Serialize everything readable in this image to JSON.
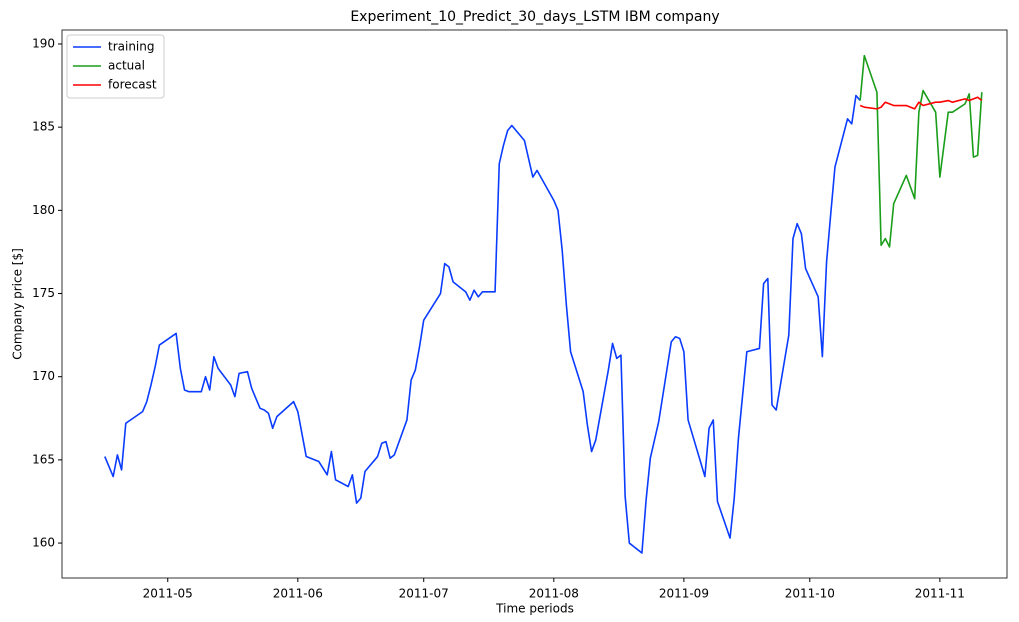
{
  "chart_data": {
    "type": "line",
    "title": "Experiment_10_Predict_30_days_LSTM IBM company",
    "x_label": "Time periods",
    "y_label": "Company price [$]",
    "xlim": [
      95.8,
      321
    ],
    "ylim": [
      157.9,
      190.84
    ],
    "xticks": [
      {
        "value": 121,
        "label": "2011-05"
      },
      {
        "value": 152,
        "label": "2011-06"
      },
      {
        "value": 182,
        "label": "2011-07"
      },
      {
        "value": 213,
        "label": "2011-08"
      },
      {
        "value": 244,
        "label": "2011-09"
      },
      {
        "value": 274,
        "label": "2011-10"
      },
      {
        "value": 305,
        "label": "2011-11"
      }
    ],
    "yticks": [
      160,
      165,
      170,
      175,
      180,
      185,
      190
    ],
    "legend": "upper left",
    "series": [
      {
        "name": "training",
        "color": "#0a3cff",
        "x": [
          106,
          108,
          109,
          110,
          111,
          115,
          116,
          117,
          118,
          119,
          123,
          124,
          125,
          126,
          129,
          130,
          131,
          132,
          133,
          136,
          137,
          138,
          140,
          141,
          143,
          144,
          145,
          146,
          147,
          151,
          152,
          154,
          157,
          159,
          160,
          161,
          164,
          165,
          166,
          167,
          168,
          171,
          172,
          173,
          174,
          175,
          178,
          179,
          180,
          181,
          182,
          186,
          187,
          188,
          189,
          192,
          193,
          194,
          195,
          196,
          199,
          200,
          201,
          202,
          203,
          206,
          207,
          208,
          209,
          213,
          214,
          215,
          216,
          217,
          220,
          221,
          222,
          223,
          226,
          227,
          228,
          229,
          230,
          231,
          234,
          235,
          236,
          238,
          241,
          242,
          243,
          244,
          245,
          249,
          250,
          251,
          252,
          255,
          256,
          257,
          259,
          262,
          263,
          264,
          265,
          266,
          269,
          270,
          271,
          272,
          273,
          276,
          277,
          278,
          279,
          280,
          283,
          284,
          285,
          286
        ],
        "values": [
          165.2,
          164.0,
          165.3,
          164.4,
          167.2,
          167.9,
          168.5,
          169.5,
          170.6,
          171.9,
          172.6,
          170.5,
          169.2,
          169.1,
          169.1,
          170.0,
          169.2,
          171.2,
          170.5,
          169.5,
          168.8,
          170.2,
          170.3,
          169.3,
          168.1,
          168.0,
          167.8,
          166.9,
          167.6,
          168.5,
          167.9,
          165.2,
          164.9,
          164.1,
          165.5,
          163.8,
          163.4,
          164.1,
          162.4,
          162.7,
          164.3,
          165.2,
          166.0,
          166.1,
          165.1,
          165.3,
          167.4,
          169.8,
          170.4,
          171.8,
          173.4,
          175.0,
          176.8,
          176.6,
          175.7,
          175.1,
          174.6,
          175.2,
          174.8,
          175.1,
          175.1,
          182.8,
          183.9,
          184.8,
          185.1,
          184.2,
          183.1,
          182.0,
          182.4,
          180.6,
          180.0,
          177.6,
          174.3,
          171.5,
          169.1,
          167.1,
          165.5,
          166.2,
          170.4,
          172.0,
          171.1,
          171.3,
          162.8,
          160.0,
          159.4,
          162.6,
          165.1,
          167.3,
          172.1,
          172.4,
          172.3,
          171.5,
          167.4,
          164.0,
          166.9,
          167.4,
          162.5,
          160.3,
          162.7,
          166.3,
          171.5,
          171.7,
          175.6,
          175.9,
          168.3,
          168.0,
          172.5,
          178.3,
          179.2,
          178.6,
          176.5,
          174.8,
          171.2,
          176.9,
          179.8,
          182.6,
          185.5,
          185.2,
          186.9,
          186.6
        ]
      },
      {
        "name": "actual",
        "color": "#1a9e1a",
        "x": [
          286,
          287,
          290,
          291,
          292,
          293,
          294,
          297,
          299,
          300,
          301,
          304,
          305,
          307,
          308,
          311,
          312,
          313,
          314,
          315
        ],
        "values": [
          186.6,
          189.3,
          187.1,
          177.9,
          178.3,
          177.8,
          180.4,
          182.1,
          180.7,
          185.9,
          187.2,
          185.9,
          182.0,
          185.9,
          185.9,
          186.4,
          187.0,
          183.2,
          183.3,
          187.1
        ]
      },
      {
        "name": "forecast",
        "color": "#ff0000",
        "x": [
          286,
          287,
          290,
          291,
          292,
          293,
          294,
          297,
          299,
          300,
          301,
          304,
          305,
          307,
          308,
          311,
          312,
          313,
          314,
          315
        ],
        "values": [
          186.3,
          186.2,
          186.1,
          186.2,
          186.5,
          186.4,
          186.3,
          186.3,
          186.1,
          186.5,
          186.3,
          186.5,
          186.5,
          186.6,
          186.5,
          186.7,
          186.6,
          186.7,
          186.8,
          186.6
        ]
      }
    ]
  }
}
